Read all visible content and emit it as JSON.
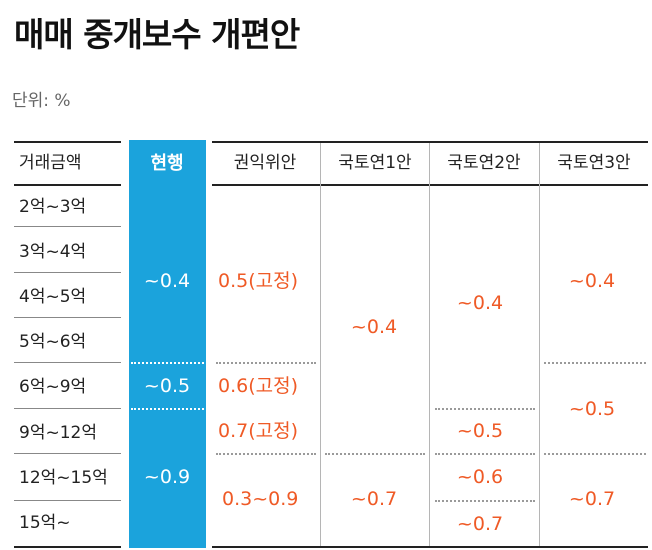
{
  "title": "매매 중개보수 개편안",
  "unit": "단위: %",
  "headers": {
    "amount": "거래금액",
    "current": "현행",
    "p1": "권익위안",
    "p2": "국토연1안",
    "p3": "국토연2안",
    "p4": "국토연3안"
  },
  "rows": [
    "2억~3억",
    "3억~4억",
    "4억~5억",
    "5억~6억",
    "6억~9억",
    "9억~12억",
    "12억~15억",
    "15억~"
  ],
  "current": {
    "a": "~0.4",
    "b": "~0.5",
    "c": "~0.9"
  },
  "p1": {
    "a": "0.5(고정)",
    "b": "0.6(고정)",
    "c": "0.7(고정)",
    "d": "0.3~0.9"
  },
  "p2": {
    "a": "~0.4",
    "b": "~0.7"
  },
  "p3": {
    "a": "~0.4",
    "b": "~0.5",
    "c": "~0.6",
    "d": "~0.7"
  },
  "p4": {
    "a": "~0.4",
    "b": "~0.5",
    "c": "~0.7"
  }
}
